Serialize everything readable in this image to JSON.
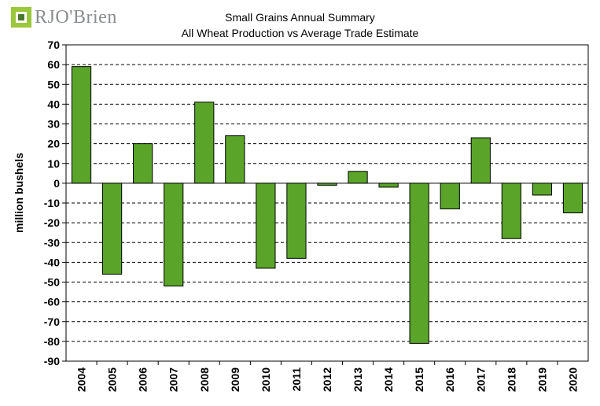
{
  "logo": {
    "text": "RJO'Brien",
    "icon": "rjo-brien-logo-mark",
    "colors": [
      "#9bc73a",
      "#4a7a2c"
    ]
  },
  "chart_data": {
    "type": "bar",
    "title": "Small Grains Annual Summary",
    "subtitle": "All Wheat Production vs Average Trade Estimate",
    "xlabel": "",
    "ylabel": "million bushels",
    "ylim": [
      -90,
      70
    ],
    "yticks": [
      70,
      60,
      50,
      40,
      30,
      20,
      10,
      0,
      -10,
      -20,
      -30,
      -40,
      -50,
      -60,
      -70,
      -80,
      -90
    ],
    "categories": [
      "2004",
      "2005",
      "2006",
      "2007",
      "2008",
      "2009",
      "2010",
      "2011",
      "2012",
      "2013",
      "2014",
      "2015",
      "2016",
      "2017",
      "2018",
      "2019",
      "2020"
    ],
    "values": [
      59,
      -46,
      20,
      -52,
      41,
      24,
      -43,
      -38,
      -1,
      6,
      -2,
      -81,
      -13,
      23,
      -28,
      -6,
      -15
    ],
    "bar_color": "#5aa42a",
    "grid": "horizontal dashed",
    "legend": "none"
  }
}
